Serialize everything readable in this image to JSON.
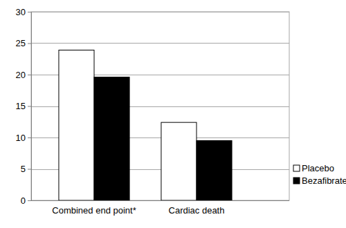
{
  "chart_data": {
    "type": "bar",
    "categories": [
      "Combined end point*",
      "Cardiac death"
    ],
    "series": [
      {
        "name": "Placebo",
        "color": "#ffffff",
        "values": [
          23.9,
          12.4
        ]
      },
      {
        "name": "Bezafibrate",
        "color": "#000000",
        "values": [
          19.6,
          9.5
        ]
      }
    ],
    "ylim": [
      0,
      30
    ],
    "yticks": [
      0,
      5,
      10,
      15,
      20,
      25,
      30
    ],
    "grid": true,
    "legend": "right"
  }
}
